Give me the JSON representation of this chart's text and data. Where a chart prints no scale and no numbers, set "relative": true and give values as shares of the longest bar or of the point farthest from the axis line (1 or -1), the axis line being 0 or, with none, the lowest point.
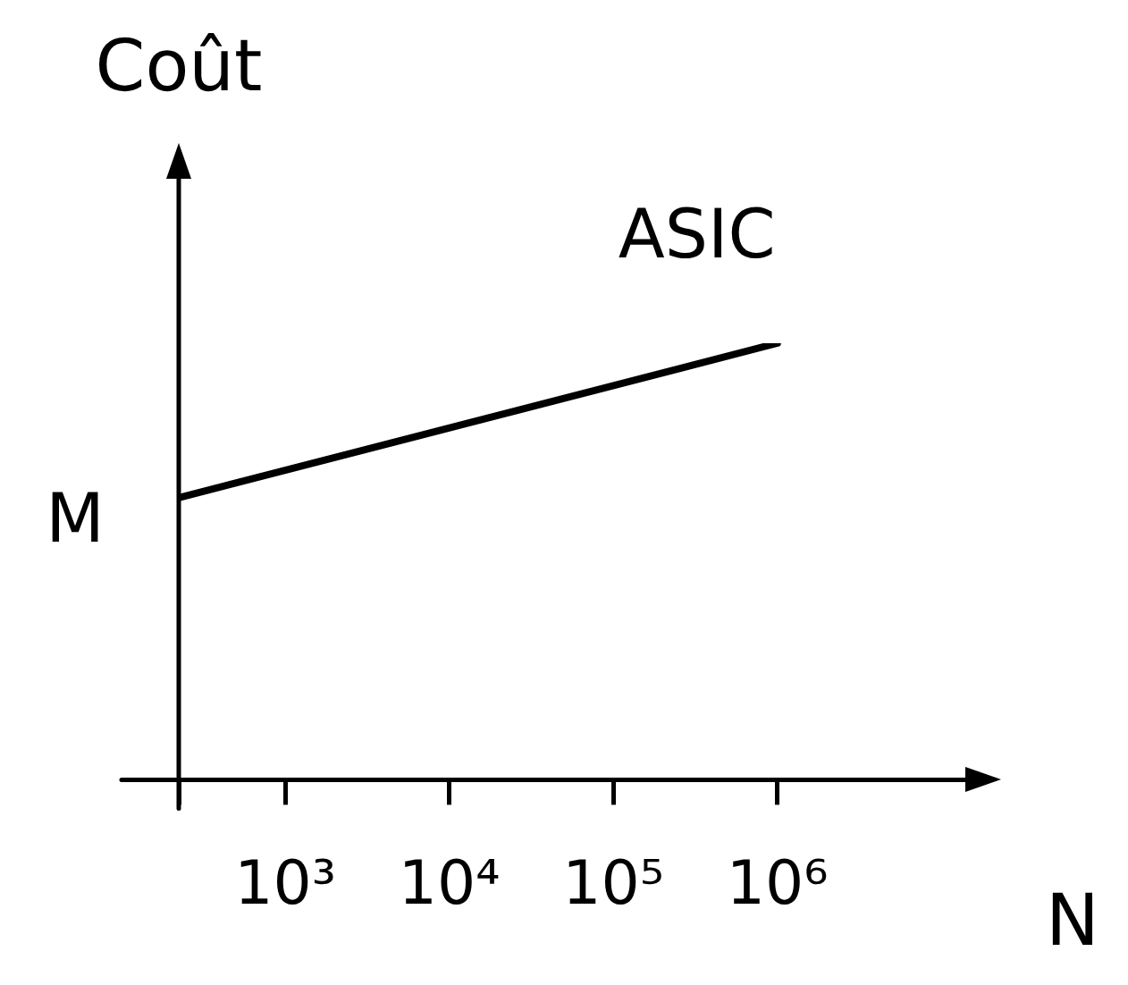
{
  "chart_data": {
    "type": "line",
    "relative": true,
    "xlabel": "N",
    "ylabel": "Coût",
    "log": "x",
    "xlim": [
      224,
      14000000
    ],
    "xticks": [
      {
        "value": 224,
        "label": null
      },
      {
        "value": 1000,
        "label": "10³"
      },
      {
        "value": 10000,
        "label": "10⁴"
      },
      {
        "value": 100000,
        "label": "10⁵"
      },
      {
        "value": 1000000,
        "label": "10⁶"
      }
    ],
    "series": [
      {
        "name": "ASIC",
        "color": "#000000",
        "x": [
          224,
          1000000
        ],
        "values": [
          0.646,
          1
        ]
      }
    ],
    "annotations": [
      "M"
    ],
    "legend": false,
    "marker": "none",
    "line_style": "solid"
  }
}
